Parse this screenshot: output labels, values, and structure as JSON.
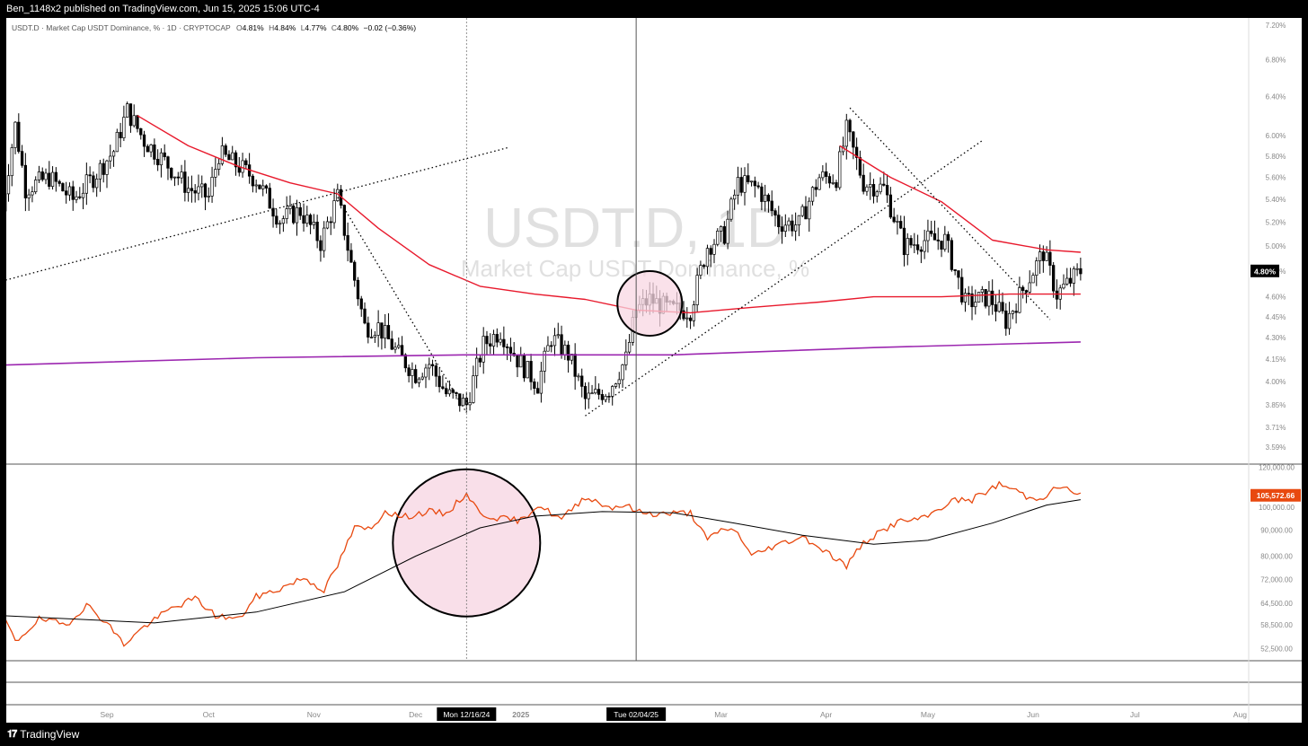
{
  "header": {
    "published_line": "Ben_1148x2 published on TradingView.com, Jun 15, 2025 15:06 UTC-4"
  },
  "legend": {
    "symbol": "USDT.D · Market Cap USDT Dominance, % · 1D · CRYPTOCAP",
    "o_label": "O",
    "o_val": "4.81%",
    "h_label": "H",
    "h_val": "4.84%",
    "l_label": "L",
    "l_val": "4.77%",
    "c_label": "C",
    "c_val": "4.80%",
    "change": "−0.02 (−0.36%)"
  },
  "watermark": {
    "ticker": "USDT.D, 1D",
    "name": "Market Cap USDT Dominance, %"
  },
  "footer": {
    "brand": "TradingView"
  },
  "colors": {
    "candle": "#000000",
    "ma_red": "#e8192c",
    "ma_purple": "#9c27b0",
    "btc_line": "#e8490f",
    "btc_ma": "#000000",
    "highlight_fill": "#f8d7e3",
    "price_tag_bg": "#000000",
    "btc_tag_bg": "#e8490f"
  },
  "chart_data": [
    {
      "type": "candlestick",
      "title": "USDT.D · Market Cap USDT Dominance, % · 1D · CRYPTOCAP",
      "yaxis_ticks": [
        "7.20%",
        "6.80%",
        "6.40%",
        "6.00%",
        "5.80%",
        "5.60%",
        "5.40%",
        "5.20%",
        "5.00%",
        "4.80%",
        "4.60%",
        "4.45%",
        "4.30%",
        "4.15%",
        "4.00%",
        "3.85%",
        "3.71%",
        "3.59%"
      ],
      "ylim": [
        3.59,
        7.2
      ],
      "scale": "log",
      "last_price_tag": "4.80%",
      "close_path": [
        [
          "2024-08-01",
          5.3
        ],
        [
          "2024-08-05",
          6.1
        ],
        [
          "2024-08-08",
          5.5
        ],
        [
          "2024-08-15",
          5.6
        ],
        [
          "2024-08-22",
          5.4
        ],
        [
          "2024-08-28",
          5.6
        ],
        [
          "2024-09-03",
          5.85
        ],
        [
          "2024-09-07",
          6.25
        ],
        [
          "2024-09-12",
          5.95
        ],
        [
          "2024-09-18",
          5.75
        ],
        [
          "2024-09-25",
          5.5
        ],
        [
          "2024-10-01",
          5.42
        ],
        [
          "2024-10-04",
          5.82
        ],
        [
          "2024-10-10",
          5.7
        ],
        [
          "2024-10-15",
          5.58
        ],
        [
          "2024-10-22",
          5.22
        ],
        [
          "2024-10-28",
          5.3
        ],
        [
          "2024-11-03",
          5.03
        ],
        [
          "2024-11-08",
          5.42
        ],
        [
          "2024-11-12",
          4.85
        ],
        [
          "2024-11-16",
          4.38
        ],
        [
          "2024-11-20",
          4.38
        ],
        [
          "2024-11-26",
          4.18
        ],
        [
          "2024-12-01",
          4.05
        ],
        [
          "2024-12-05",
          4.12
        ],
        [
          "2024-12-10",
          3.92
        ],
        [
          "2024-12-16",
          3.85
        ],
        [
          "2024-12-21",
          4.25
        ],
        [
          "2024-12-26",
          4.35
        ],
        [
          "2024-12-31",
          4.15
        ],
        [
          "2025-01-06",
          3.98
        ],
        [
          "2025-01-10",
          4.3
        ],
        [
          "2025-01-15",
          4.18
        ],
        [
          "2025-01-20",
          3.88
        ],
        [
          "2025-01-27",
          3.95
        ],
        [
          "2025-02-01",
          4.15
        ],
        [
          "2025-02-04",
          4.5
        ],
        [
          "2025-02-08",
          4.58
        ],
        [
          "2025-02-14",
          4.5
        ],
        [
          "2025-02-20",
          4.5
        ],
        [
          "2025-02-25",
          5.0
        ],
        [
          "2025-03-02",
          5.1
        ],
        [
          "2025-03-06",
          5.55
        ],
        [
          "2025-03-12",
          5.5
        ],
        [
          "2025-03-18",
          5.2
        ],
        [
          "2025-03-24",
          5.18
        ],
        [
          "2025-03-30",
          5.6
        ],
        [
          "2025-04-04",
          5.6
        ],
        [
          "2025-04-07",
          6.05
        ],
        [
          "2025-04-12",
          5.55
        ],
        [
          "2025-04-18",
          5.5
        ],
        [
          "2025-04-24",
          5.0
        ],
        [
          "2025-04-30",
          5.05
        ],
        [
          "2025-05-06",
          5.05
        ],
        [
          "2025-05-12",
          4.55
        ],
        [
          "2025-05-19",
          4.6
        ],
        [
          "2025-05-24",
          4.42
        ],
        [
          "2025-05-30",
          4.7
        ],
        [
          "2025-06-04",
          4.95
        ],
        [
          "2025-06-08",
          4.62
        ],
        [
          "2025-06-15",
          4.8
        ]
      ],
      "ma_red": [
        [
          "2024-09-10",
          6.2
        ],
        [
          "2024-09-25",
          5.9
        ],
        [
          "2024-10-10",
          5.7
        ],
        [
          "2024-10-25",
          5.55
        ],
        [
          "2024-11-08",
          5.45
        ],
        [
          "2024-11-20",
          5.15
        ],
        [
          "2024-12-05",
          4.85
        ],
        [
          "2024-12-20",
          4.68
        ],
        [
          "2025-01-05",
          4.62
        ],
        [
          "2025-01-20",
          4.58
        ],
        [
          "2025-02-04",
          4.5
        ],
        [
          "2025-02-20",
          4.48
        ],
        [
          "2025-03-10",
          4.52
        ],
        [
          "2025-03-30",
          4.56
        ],
        [
          "2025-04-15",
          4.6
        ],
        [
          "2025-05-05",
          4.6
        ],
        [
          "2025-05-25",
          4.62
        ],
        [
          "2025-06-15",
          4.62
        ]
      ],
      "ma_red_upper": [
        [
          "2025-04-05",
          5.9
        ],
        [
          "2025-04-20",
          5.6
        ],
        [
          "2025-05-05",
          5.38
        ],
        [
          "2025-05-20",
          5.05
        ],
        [
          "2025-06-05",
          4.97
        ],
        [
          "2025-06-15",
          4.95
        ]
      ],
      "ma_purple": [
        [
          "2024-08-01",
          4.11
        ],
        [
          "2024-10-15",
          4.16
        ],
        [
          "2024-12-15",
          4.18
        ],
        [
          "2025-02-15",
          4.18
        ],
        [
          "2025-04-15",
          4.23
        ],
        [
          "2025-06-15",
          4.27
        ]
      ],
      "highlight_circle": {
        "date": "2025-02-08",
        "value": 4.55
      }
    },
    {
      "type": "line",
      "series": [
        {
          "values": []
        }
      ],
      "yaxis_ticks": [
        "120,000.00",
        "100,000.00",
        "90,000.00",
        "80,000.00",
        "72,000.00",
        "64,500.00",
        "58,500.00",
        "52,500.00"
      ],
      "scale": "log",
      "last_price_tag": "105,572.66",
      "btc_points": [
        [
          "2024-08-01",
          62000
        ],
        [
          "2024-08-05",
          54000
        ],
        [
          "2024-08-12",
          60000
        ],
        [
          "2024-08-20",
          58500
        ],
        [
          "2024-08-26",
          64000
        ],
        [
          "2024-09-01",
          59000
        ],
        [
          "2024-09-06",
          53500
        ],
        [
          "2024-09-12",
          58000
        ],
        [
          "2024-09-20",
          63000
        ],
        [
          "2024-09-27",
          66000
        ],
        [
          "2024-10-03",
          61000
        ],
        [
          "2024-10-10",
          60000
        ],
        [
          "2024-10-15",
          66500
        ],
        [
          "2024-10-21",
          68500
        ],
        [
          "2024-10-29",
          72500
        ],
        [
          "2024-11-04",
          68500
        ],
        [
          "2024-11-08",
          76500
        ],
        [
          "2024-11-13",
          91000
        ],
        [
          "2024-11-18",
          90500
        ],
        [
          "2024-11-22",
          98500
        ],
        [
          "2024-11-27",
          95500
        ],
        [
          "2024-12-05",
          98000
        ],
        [
          "2024-12-10",
          97000
        ],
        [
          "2024-12-16",
          106500
        ],
        [
          "2024-12-20",
          97000
        ],
        [
          "2024-12-26",
          95000
        ],
        [
          "2025-01-01",
          94000
        ],
        [
          "2025-01-06",
          101000
        ],
        [
          "2025-01-13",
          94500
        ],
        [
          "2025-01-20",
          105000
        ],
        [
          "2025-01-27",
          100000
        ],
        [
          "2025-02-01",
          101000
        ],
        [
          "2025-02-04",
          98000
        ],
        [
          "2025-02-10",
          97000
        ],
        [
          "2025-02-20",
          97500
        ],
        [
          "2025-02-25",
          86000
        ],
        [
          "2025-03-02",
          91000
        ],
        [
          "2025-03-06",
          89000
        ],
        [
          "2025-03-10",
          80000
        ],
        [
          "2025-03-16",
          83500
        ],
        [
          "2025-03-25",
          87500
        ],
        [
          "2025-03-31",
          82500
        ],
        [
          "2025-04-07",
          76500
        ],
        [
          "2025-04-12",
          85000
        ],
        [
          "2025-04-22",
          93500
        ],
        [
          "2025-04-30",
          95000
        ],
        [
          "2025-05-08",
          103000
        ],
        [
          "2025-05-14",
          103500
        ],
        [
          "2025-05-22",
          111000
        ],
        [
          "2025-05-27",
          108000
        ],
        [
          "2025-05-31",
          104000
        ],
        [
          "2025-06-04",
          105000
        ],
        [
          "2025-06-09",
          110000
        ],
        [
          "2025-06-15",
          105572.66
        ]
      ],
      "btc_ma": [
        [
          "2024-08-01",
          61000
        ],
        [
          "2024-09-15",
          59000
        ],
        [
          "2024-10-15",
          62000
        ],
        [
          "2024-11-10",
          68000
        ],
        [
          "2024-12-01",
          80000
        ],
        [
          "2024-12-20",
          91000
        ],
        [
          "2025-01-05",
          96000
        ],
        [
          "2025-01-25",
          98000
        ],
        [
          "2025-02-15",
          97500
        ],
        [
          "2025-03-05",
          93000
        ],
        [
          "2025-03-25",
          88000
        ],
        [
          "2025-04-15",
          84500
        ],
        [
          "2025-05-01",
          86000
        ],
        [
          "2025-05-20",
          93000
        ],
        [
          "2025-06-05",
          101000
        ],
        [
          "2025-06-15",
          103500
        ]
      ],
      "highlight_circle": {
        "date": "2024-12-16",
        "value": 85000
      }
    }
  ],
  "xaxis": {
    "ticks": [
      "Sep",
      "Oct",
      "Nov",
      "Dec",
      "2025",
      "Mar",
      "Apr",
      "May",
      "Jun",
      "Jul",
      "Aug"
    ],
    "cursor_labels": [
      "Mon 12/16/24",
      "Tue 02/04/25"
    ]
  }
}
